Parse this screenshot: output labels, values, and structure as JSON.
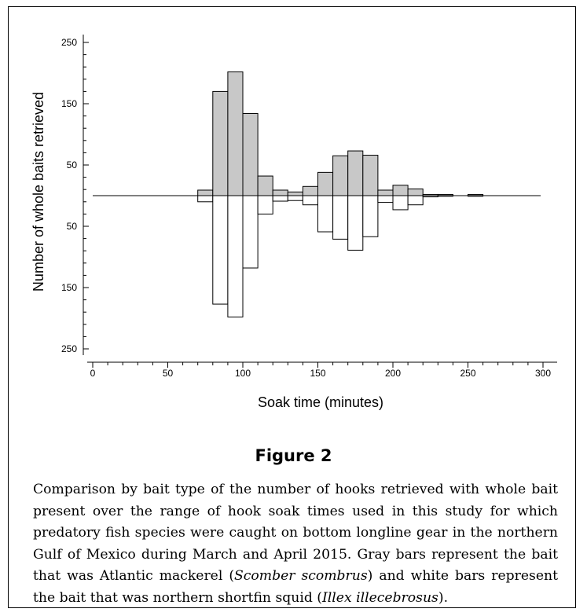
{
  "figure": {
    "title": "Figure 2",
    "caption_part1": "Comparison by bait type of the number of hooks retrieved with whole bait present over the range of hook soak times used in this study for which predatory fish species were caught on bottom longline gear in the northern Gulf of Mexico during March and April 2015. Gray bars represent the bait that was Atlantic mackerel (",
    "caption_species1": "Scomber scombrus",
    "caption_part2": ") and white bars represent the bait that was northern shortfin squid (",
    "caption_species2": "Illex illecebrosus",
    "caption_part3": ")."
  },
  "colors": {
    "mackerel": "#c8c8c8",
    "squid": "#ffffff",
    "stroke": "#000000"
  },
  "chart_data": {
    "type": "bar",
    "title": "",
    "xlabel": "Soak time (minutes)",
    "ylabel": "Number of whole baits retrieved",
    "xlim": [
      0,
      300
    ],
    "xticks": [
      0,
      50,
      100,
      150,
      200,
      250,
      300
    ],
    "ylim": [
      -250,
      250
    ],
    "yticks": [
      250,
      150,
      50,
      -50,
      -150,
      -250
    ],
    "ytick_labels": [
      "250",
      "150",
      "50",
      "50",
      "150",
      "250"
    ],
    "bin_width": 10,
    "series": [
      {
        "direction": "up",
        "bins": [
          70,
          80,
          90,
          100,
          110,
          120,
          130,
          140,
          150,
          160,
          170,
          180,
          190,
          200,
          210,
          220,
          230,
          250
        ],
        "values": [
          9,
          170,
          202,
          134,
          32,
          9,
          6,
          15,
          38,
          65,
          73,
          66,
          9,
          17,
          11,
          2,
          2,
          2
        ]
      },
      {
        "direction": "down",
        "bins": [
          70,
          80,
          90,
          100,
          110,
          120,
          130,
          140,
          150,
          160,
          170,
          180,
          190,
          200,
          210,
          220,
          230,
          250
        ],
        "values": [
          10,
          177,
          198,
          118,
          30,
          9,
          8,
          15,
          59,
          71,
          89,
          67,
          11,
          23,
          15,
          2,
          1,
          1
        ]
      }
    ]
  }
}
